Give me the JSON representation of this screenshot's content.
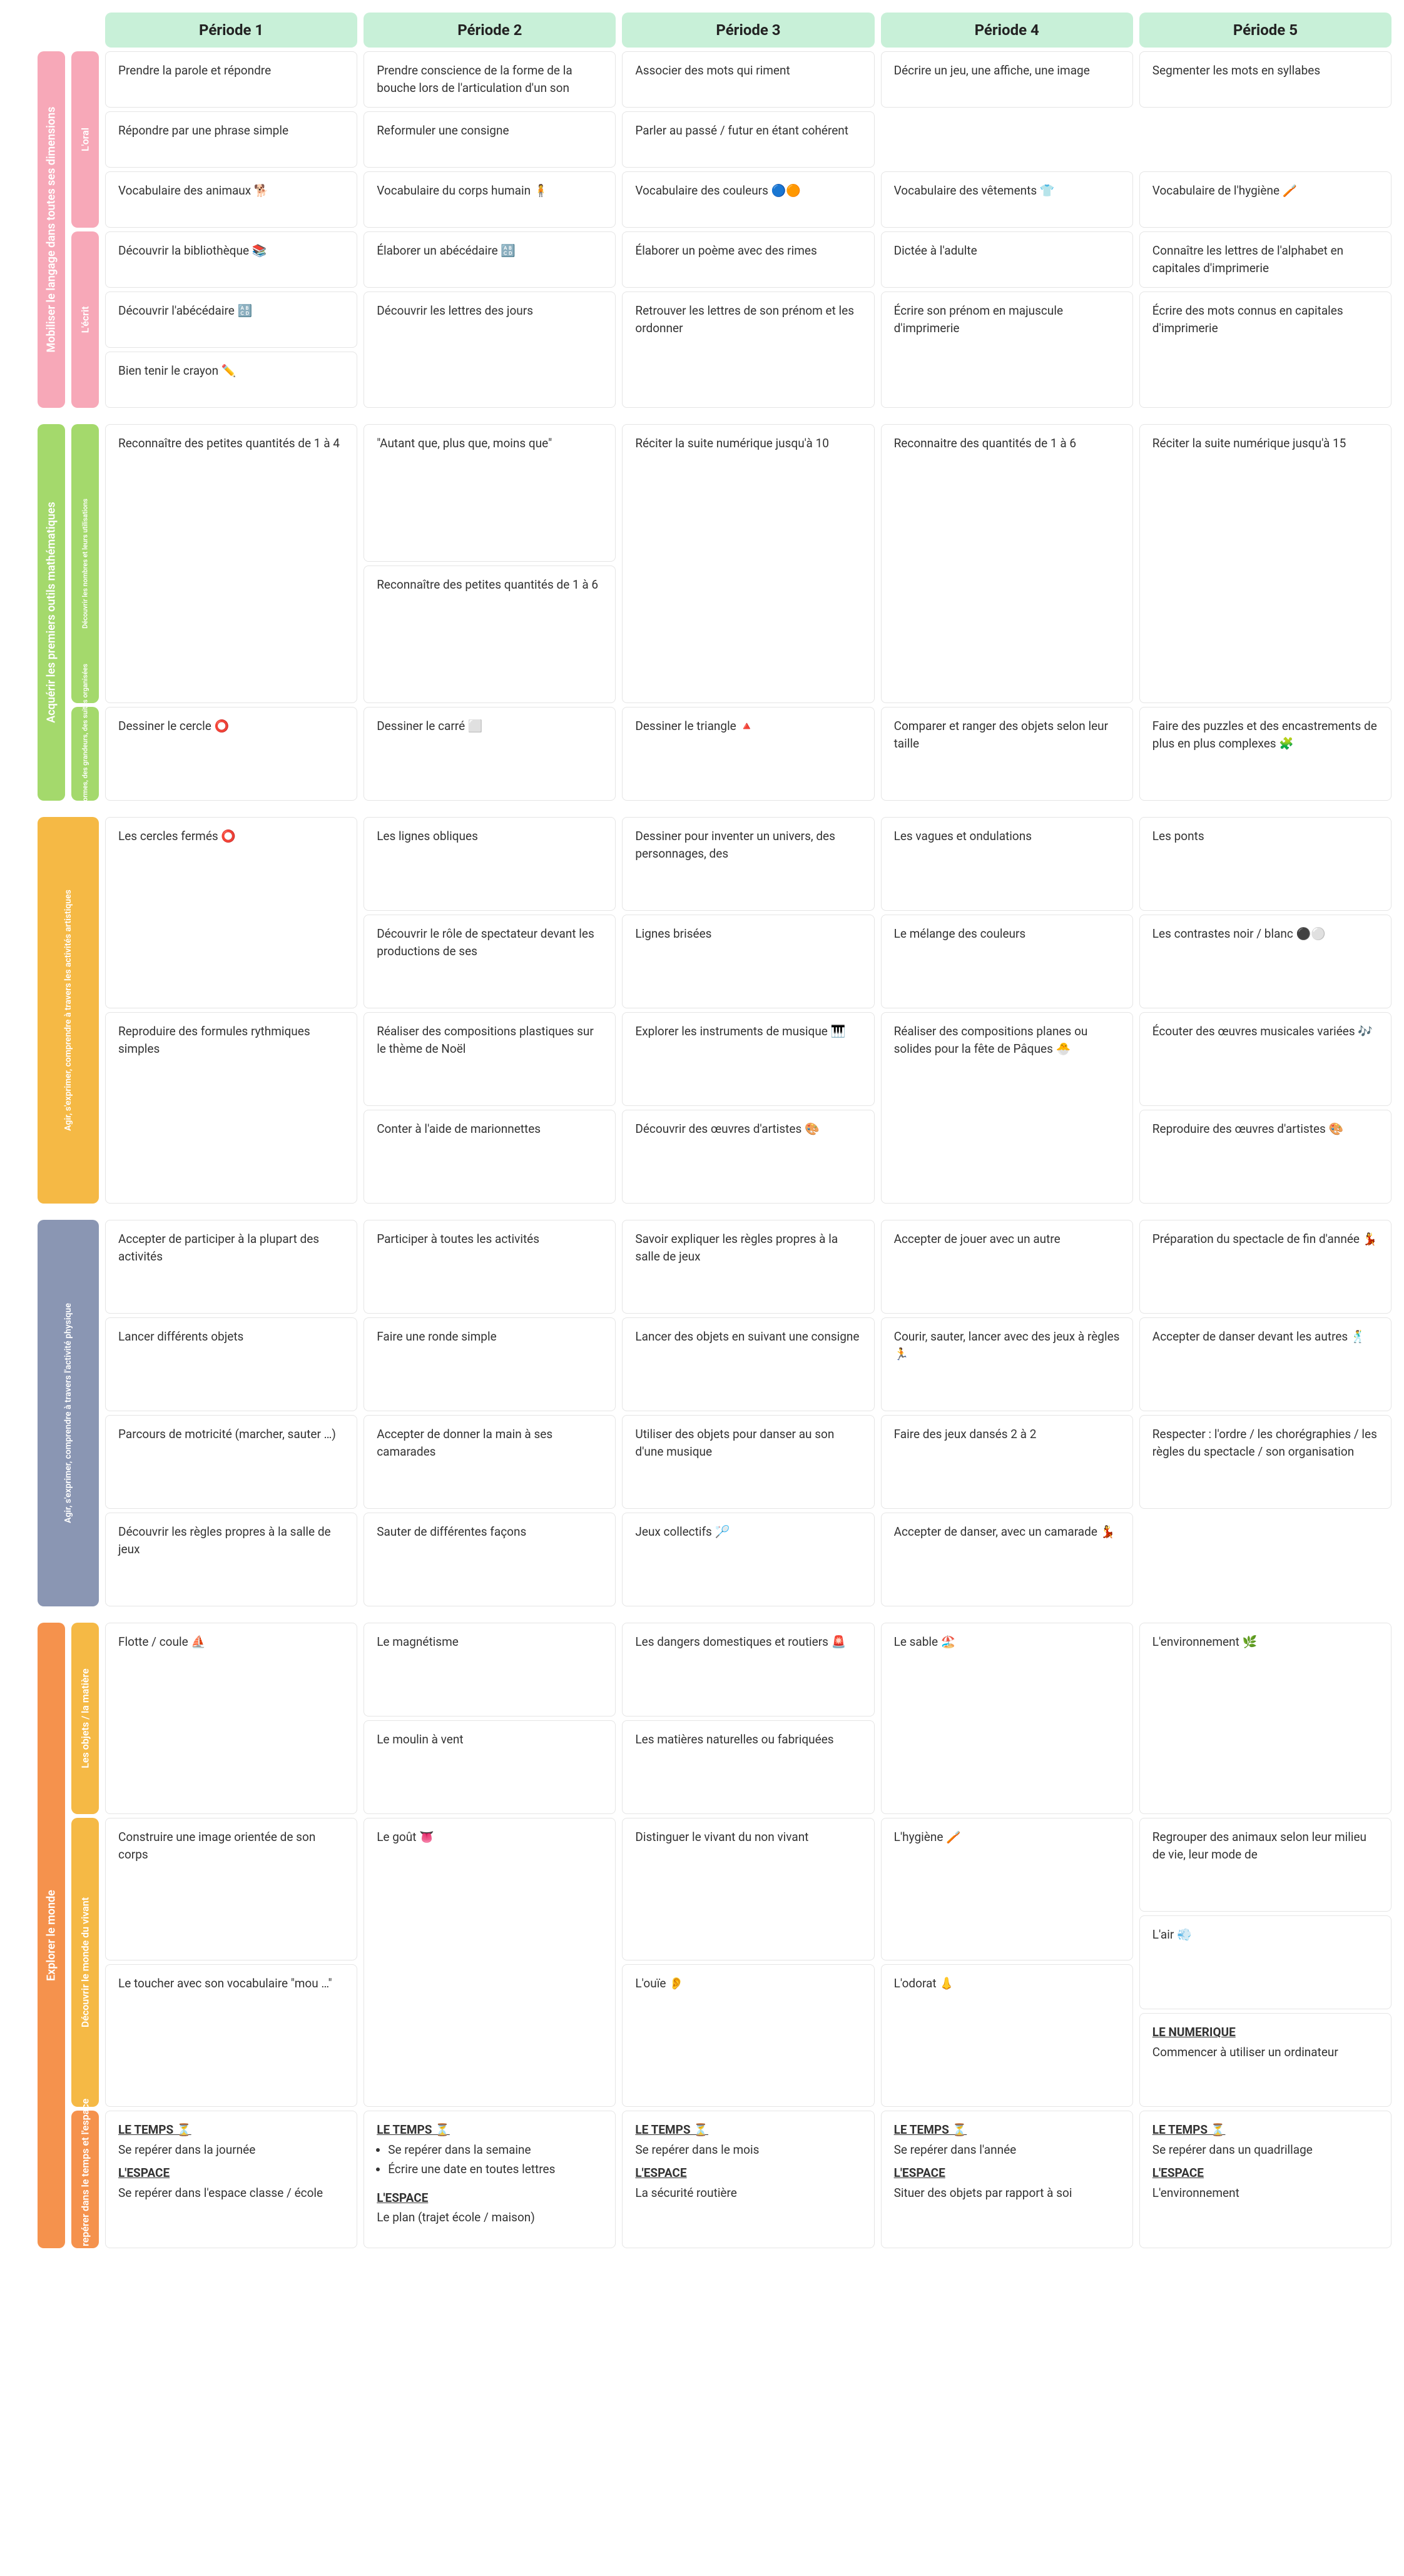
{
  "periods": [
    "Période 1",
    "Période 2",
    "Période 3",
    "Période 4",
    "Période 5"
  ],
  "domains": {
    "langage": {
      "label": "Mobiliser le langage dans toutes ses dimensions",
      "color": "#f7a8b8",
      "subs": {
        "oral": {
          "label": "L'oral",
          "color": "#f7a8b8"
        },
        "ecrit": {
          "label": "L'écrit",
          "color": "#f7a8b8"
        }
      }
    },
    "math": {
      "label": "Acquérir les premiers outils mathématiques",
      "color": "#a4d96c",
      "subs": {
        "nombres": {
          "label": "Découvrir les nombres et leurs utilisations",
          "color": "#a4d96c",
          "small": true
        },
        "formes": {
          "label": "Explorer des formes, des grandeurs, des suites organisées",
          "color": "#a4d96c",
          "small": true
        }
      }
    },
    "art": {
      "label": "Agir, s'exprimer, comprendre à travers les activités artistiques",
      "color": "#f5b945"
    },
    "phys": {
      "label": "Agir, s'exprimer, comprendre à travers l'activité physique",
      "color": "#8a96b3"
    },
    "monde": {
      "label": "Explorer le monde",
      "color": "#f5924d",
      "subs": {
        "objets": {
          "label": "Les objets / la matière",
          "color": "#f5b945"
        },
        "vivant": {
          "label": "Découvrir le monde du vivant",
          "color": "#f5b945"
        },
        "temps": {
          "label": "Se repérer dans le temps et l'espace",
          "color": "#f5924d"
        }
      }
    }
  },
  "content": {
    "oral": [
      [
        "Prendre la parole et répondre",
        "Prendre conscience de la forme de la bouche lors de l'articulation d'un son",
        "Associer des mots qui riment",
        "Décrire un jeu, une affiche, une image",
        "Segmenter les mots en syllabes"
      ],
      [
        "Répondre par une phrase simple",
        "Reformuler une consigne",
        "Parler au passé / futur en étant cohérent",
        "",
        ""
      ],
      [
        "Vocabulaire des animaux 🐕",
        "Vocabulaire du corps humain 🧍",
        "Vocabulaire des couleurs 🔵🟠",
        "Vocabulaire des vêtements 👕",
        "Vocabulaire de l'hygiène 🪥"
      ]
    ],
    "ecrit": [
      [
        "Découvrir la bibliothèque 📚",
        "Élaborer un abécédaire 🔠",
        "Élaborer un poème avec des rimes",
        "Dictée à l'adulte",
        "Connaître les lettres de l'alphabet en capitales d'imprimerie"
      ],
      [
        [
          "Découvrir l'abécédaire 🔠",
          "Bien tenir le crayon ✏️"
        ],
        "Découvrir les lettres des jours",
        "Retrouver les lettres de son prénom et les ordonner",
        "Écrire son prénom en majuscule d'imprimerie",
        "Écrire des mots connus en capitales d'imprimerie"
      ]
    ],
    "nombres": [
      [
        "Reconnaître des petites quantités de 1 à 4",
        [
          "\"Autant que, plus que, moins que\"",
          "Reconnaître des petites quantités de 1 à 6"
        ],
        "Réciter la suite numérique jusqu'à 10",
        "Reconnaitre des quantités de 1 à 6",
        "Réciter la suite numérique jusqu'à 15"
      ]
    ],
    "formes": [
      [
        "Dessiner le cercle ⭕",
        "Dessiner le carré ⬜",
        "Dessiner le triangle 🔺",
        "Comparer et ranger des objets selon leur taille",
        "Faire des puzzles et des encastrements de plus en plus complexes 🧩"
      ]
    ],
    "art": [
      [
        "Les cercles fermés ⭕",
        [
          "Les lignes obliques",
          "Découvrir le rôle de spectateur devant les productions de ses"
        ],
        [
          "Dessiner pour inventer un univers, des personnages, des",
          "Lignes brisées"
        ],
        [
          "Les vagues et ondulations",
          "Le mélange des couleurs"
        ],
        [
          "Les ponts",
          "Les contrastes noir / blanc ⚫⚪"
        ]
      ],
      [
        "Reproduire des formules rythmiques simples",
        [
          "Réaliser des compositions plastiques sur le thème de Noël",
          "Conter à l'aide de marionnettes"
        ],
        [
          "Explorer les instruments de musique 🎹",
          "Découvrir des œuvres d'artistes 🎨"
        ],
        "Réaliser des compositions planes ou solides pour la fête de Pâques 🐣",
        [
          "Écouter des œuvres musicales variées 🎶",
          "Reproduire des œuvres d'artistes 🎨"
        ]
      ]
    ],
    "phys": [
      [
        "Accepter de participer à la plupart des activités",
        "Participer à toutes les activités",
        "Savoir expliquer les règles propres à la salle de jeux",
        "Accepter de jouer avec un autre",
        "Préparation du spectacle de fin d'année 💃"
      ],
      [
        "Lancer différents objets",
        "Faire une ronde simple",
        "Lancer des objets en suivant une consigne",
        "Courir, sauter, lancer avec des jeux à règles 🏃",
        "Accepter de danser devant les autres 🕺"
      ],
      [
        "Parcours de motricité (marcher, sauter …)",
        "Accepter de donner la main à ses camarades",
        "Utiliser des objets pour danser au son d'une musique",
        "Faire des jeux dansés 2 à 2",
        "Respecter :  l'ordre / les chorégraphies / les règles du spectacle / son organisation"
      ],
      [
        "Découvrir les règles propres à la salle de jeux",
        "Sauter de différentes façons",
        "Jeux collectifs 🏸",
        "Accepter de danser, avec un camarade 💃",
        ""
      ]
    ],
    "objets": [
      [
        "Flotte / coule ⛵",
        [
          "Le magnétisme",
          "Le moulin à vent"
        ],
        [
          "Les dangers domestiques et routiers 🚨",
          "Les matières naturelles ou fabriquées"
        ],
        "Le sable 🏖️",
        "L'environnement 🌿"
      ]
    ],
    "vivant": [
      [
        [
          "Construire une image orientée de son corps",
          "Le toucher avec son vocabulaire \"mou …\""
        ],
        "Le goût 👅",
        [
          "Distinguer le vivant du non vivant",
          "L'ouïe 👂"
        ],
        [
          "L'hygiène 🪥",
          "L'odorat 👃"
        ],
        [
          "Regrouper des animaux selon leur milieu de vie, leur mode de",
          "L'air 💨",
          {
            "title": "LE NUMERIQUE",
            "body": "Commencer à utiliser un ordinateur"
          }
        ]
      ]
    ],
    "temps": [
      [
        {
          "blocks": [
            {
              "title": "LE TEMPS ⏳",
              "body": "Se repérer dans la journée"
            },
            {
              "title": "L'ESPACE",
              "body": "Se repérer dans l'espace classe / école"
            }
          ]
        },
        {
          "blocks": [
            {
              "title": "LE TEMPS ⏳",
              "list": [
                "Se repérer dans la semaine",
                "Écrire une date en toutes lettres"
              ]
            },
            {
              "title": "L'ESPACE",
              "body": "Le plan (trajet école / maison)"
            }
          ]
        },
        {
          "blocks": [
            {
              "title": "LE TEMPS ⏳",
              "body": "Se repérer dans le mois"
            },
            {
              "title": "L'ESPACE",
              "body": "La sécurité routière"
            }
          ]
        },
        {
          "blocks": [
            {
              "title": "LE TEMPS ⏳",
              "body": "Se repérer dans l'année"
            },
            {
              "title": "L'ESPACE",
              "body": "Situer des objets par rapport à soi"
            }
          ]
        },
        {
          "blocks": [
            {
              "title": "LE TEMPS ⏳",
              "body": "Se repérer dans un quadrillage"
            },
            {
              "title": "L'ESPACE",
              "body": "L'environnement"
            }
          ]
        }
      ]
    ]
  },
  "layout": {
    "card_border": "#e5e5e5",
    "header_bg": "#c8f0d8",
    "page_bg": "#ffffff"
  }
}
